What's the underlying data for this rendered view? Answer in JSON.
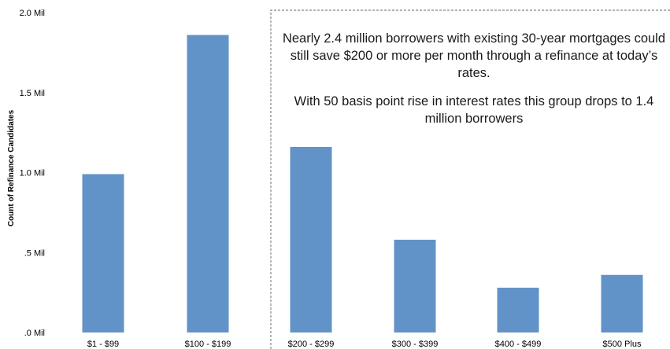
{
  "chart_data": {
    "type": "bar",
    "categories": [
      "$1 - $99",
      "$100 - $199",
      "$200 - $299",
      "$300 - $399",
      "$400 - $499",
      "$500 Plus"
    ],
    "values": [
      0.99,
      1.86,
      1.16,
      0.58,
      0.28,
      0.36
    ],
    "ylabel": "Count of Refinance Candidates",
    "ylim": [
      0,
      2.0
    ],
    "yticks": [
      0,
      0.5,
      1.0,
      1.5,
      2.0
    ],
    "ytick_labels": [
      ".0 Mil",
      ".5 Mil",
      "1.0 Mil",
      "1.5 Mil",
      "2.0 Mil"
    ],
    "grid": false,
    "bar_color": "#6193c8",
    "highlight_box_color": "#888888",
    "annotation": {
      "line1": "Nearly 2.4 million borrowers with existing 30-year mortgages could still save $200 or more per month through a refinance at today’s rates.",
      "line2": "With 50 basis point rise in interest rates this group drops to 1.4 million borrowers"
    }
  }
}
